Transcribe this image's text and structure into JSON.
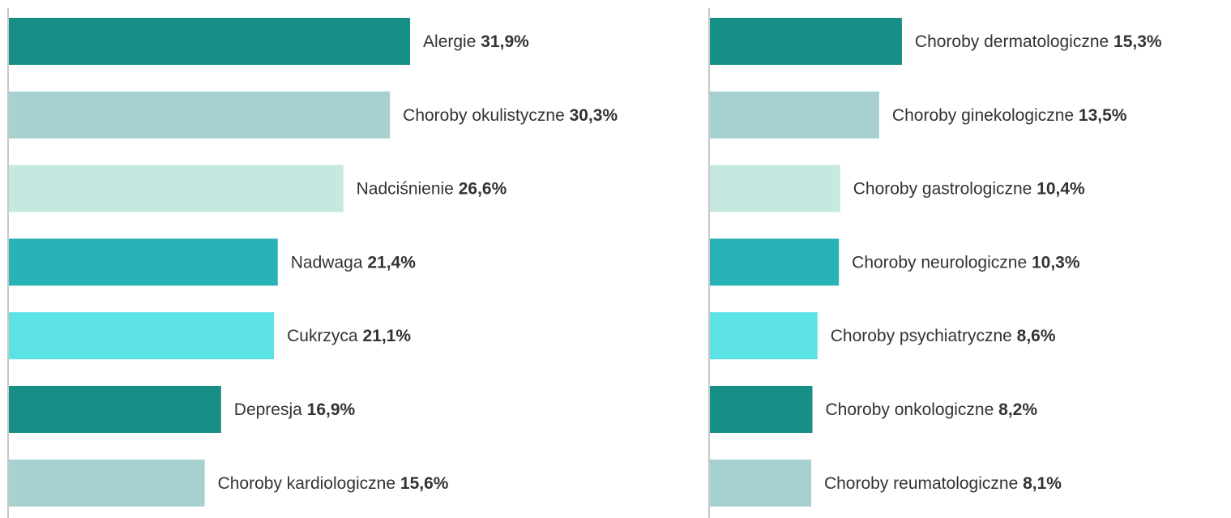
{
  "chart_data": [
    {
      "type": "bar",
      "orientation": "horizontal",
      "categories": [
        "Alergie",
        "Choroby okulistyczne",
        "Nadciśnienie",
        "Nadwaga",
        "Cukrzyca",
        "Depresja",
        "Choroby kardiologiczne"
      ],
      "values": [
        31.9,
        30.3,
        26.6,
        21.4,
        21.1,
        16.9,
        15.6
      ],
      "value_labels": [
        "31,9%",
        "30,3%",
        "26,6%",
        "21,4%",
        "21,1%",
        "16,9%",
        "15,6%"
      ],
      "colors": [
        "#178e86",
        "#a7d1d1",
        "#c5e8e1",
        "#29b3b7",
        "#5ce2e4",
        "#178e86",
        "#a7d1d1"
      ]
    },
    {
      "type": "bar",
      "orientation": "horizontal",
      "categories": [
        "Choroby dermatologiczne",
        "Choroby ginekologiczne",
        "Choroby gastrologiczne",
        "Choroby neurologiczne",
        "Choroby psychiatryczne",
        "Choroby onkologiczne",
        "Choroby reumatologiczne"
      ],
      "values": [
        15.3,
        13.5,
        10.4,
        10.3,
        8.6,
        8.2,
        8.1
      ],
      "value_labels": [
        "15,3%",
        "13,5%",
        "10,4%",
        "10,3%",
        "8,6%",
        "8,2%",
        "8,1%"
      ],
      "colors": [
        "#178e86",
        "#a7d1d1",
        "#c5e8e1",
        "#29b3b7",
        "#5ce2e4",
        "#178e86",
        "#a7d1d1"
      ]
    }
  ]
}
